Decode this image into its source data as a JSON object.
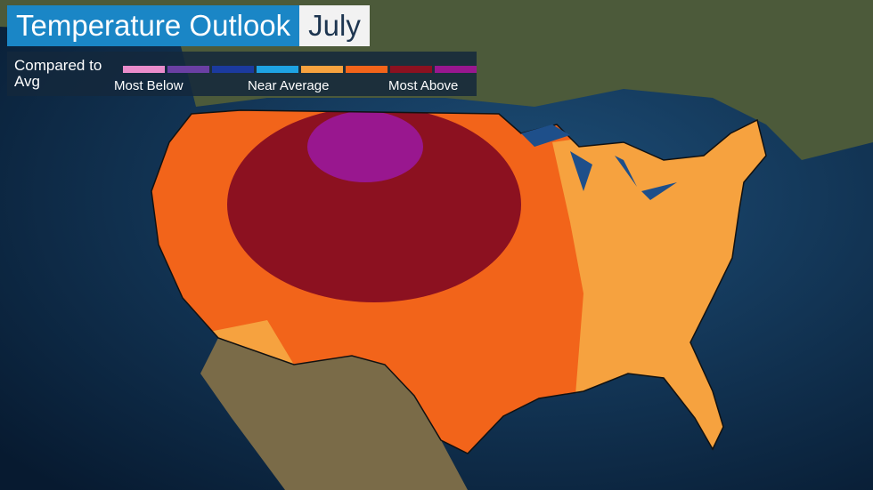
{
  "header": {
    "title": "Temperature Outlook",
    "month": "July"
  },
  "legend": {
    "label": "Compared to Avg",
    "colors": [
      "#e98ccb",
      "#6a3fa3",
      "#1b3a9e",
      "#1ea3e3",
      "#f6a23f",
      "#f2641a",
      "#8c1120",
      "#99178f"
    ],
    "low_label": "Most Below",
    "mid_label": "Near Average",
    "high_label": "Most Above"
  }
}
